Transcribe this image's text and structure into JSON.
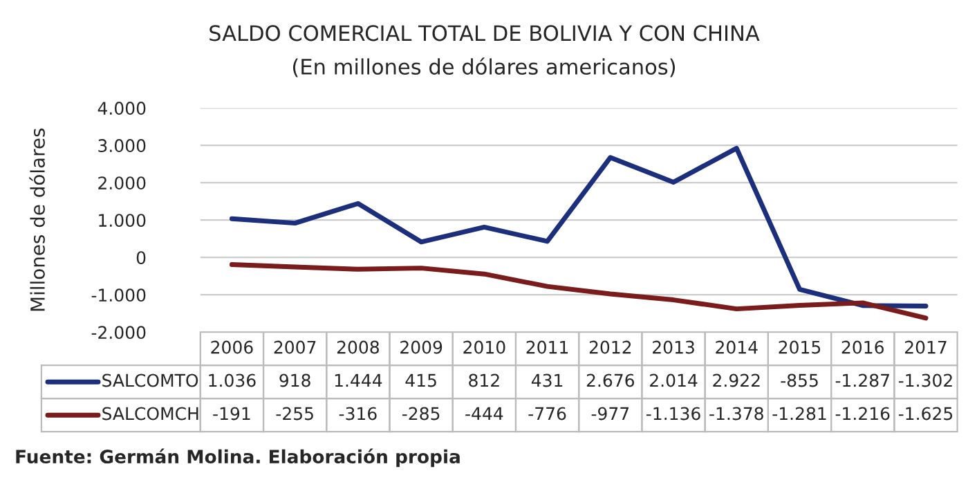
{
  "chart_data": {
    "type": "line",
    "title": "SALDO COMERCIAL TOTAL DE BOLIVIA Y CON CHINA",
    "subtitle": "(En millones de dólares americanos)",
    "ylabel": "Millones de dólares",
    "categories": [
      "2006",
      "2007",
      "2008",
      "2009",
      "2010",
      "2011",
      "2012",
      "2013",
      "2014",
      "2015",
      "2016",
      "2017"
    ],
    "series": [
      {
        "name": "SALCOMTO",
        "color": "#1c2f7c",
        "values": [
          1036,
          918,
          1444,
          415,
          812,
          431,
          2676,
          2014,
          2922,
          -855,
          -1287,
          -1302
        ],
        "value_labels": [
          "1.036",
          "918",
          "1.444",
          "415",
          "812",
          "431",
          "2.676",
          "2.014",
          "2.922",
          "-855",
          "-1.287",
          "-1.302"
        ]
      },
      {
        "name": "SALCOMCH",
        "color": "#7b1c1c",
        "values": [
          -191,
          -255,
          -316,
          -285,
          -444,
          -776,
          -977,
          -1136,
          -1378,
          -1281,
          -1216,
          -1625
        ],
        "value_labels": [
          "-191",
          "-255",
          "-316",
          "-285",
          "-444",
          "-776",
          "-977",
          "-1.136",
          "-1.378",
          "-1.281",
          "-1.216",
          "-1.625"
        ]
      }
    ],
    "ylim": [
      -2000,
      4000
    ],
    "yticks": [
      {
        "value": -2000,
        "label": "-2.000"
      },
      {
        "value": -1000,
        "label": "-1.000"
      },
      0,
      {
        "value": 1000,
        "label": "1.000"
      },
      {
        "value": 2000,
        "label": "2.000"
      },
      {
        "value": 3000,
        "label": "3.000"
      },
      {
        "value": 4000,
        "label": "4.000"
      }
    ],
    "grid": "y",
    "legend": "bottom",
    "line_style": "solid",
    "marker": "none",
    "annotations": [
      "Fuente: Germán Molina. Elaboración propia"
    ]
  }
}
